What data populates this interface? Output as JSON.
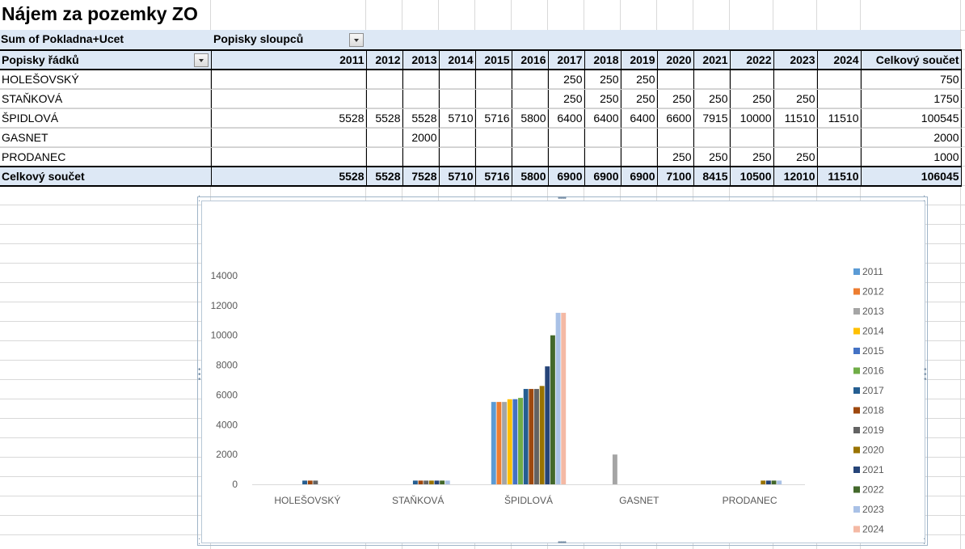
{
  "sheet": {
    "title": "Nájem za pozemky ZO",
    "value_field": "Sum of Pokladna+Ucet",
    "column_labels": "Popisky sloupců",
    "row_labels": "Popisky řádků",
    "grand_total_label": "Celkový součet"
  },
  "pivot": {
    "years": [
      "2011",
      "2012",
      "2013",
      "2014",
      "2015",
      "2016",
      "2017",
      "2018",
      "2019",
      "2020",
      "2021",
      "2022",
      "2023",
      "2024"
    ],
    "rows": [
      {
        "label": "HOLEŠOVSKÝ",
        "cells": [
          "",
          "",
          "",
          "",
          "",
          "",
          "250",
          "250",
          "250",
          "",
          "",
          "",
          "",
          ""
        ],
        "total": "750"
      },
      {
        "label": "STAŇKOVÁ",
        "cells": [
          "",
          "",
          "",
          "",
          "",
          "",
          "250",
          "250",
          "250",
          "250",
          "250",
          "250",
          "250",
          ""
        ],
        "total": "1750"
      },
      {
        "label": "ŠPIDLOVÁ",
        "cells": [
          "5528",
          "5528",
          "5528",
          "5710",
          "5716",
          "5800",
          "6400",
          "6400",
          "6400",
          "6600",
          "7915",
          "10000",
          "11510",
          "11510"
        ],
        "total": "100545"
      },
      {
        "label": "GASNET",
        "cells": [
          "",
          "",
          "2000",
          "",
          "",
          "",
          "",
          "",
          "",
          "",
          "",
          "",
          "",
          ""
        ],
        "total": "2000"
      },
      {
        "label": "PRODANEC",
        "cells": [
          "",
          "",
          "",
          "",
          "",
          "",
          "",
          "",
          "",
          "250",
          "250",
          "250",
          "250",
          ""
        ],
        "total": "1000"
      }
    ],
    "totals": [
      "5528",
      "5528",
      "7528",
      "5710",
      "5716",
      "5800",
      "6900",
      "6900",
      "6900",
      "7100",
      "8415",
      "10500",
      "12010",
      "11510"
    ],
    "grand_total": "106045"
  },
  "chart_data": {
    "type": "bar",
    "categories": [
      "HOLEŠOVSKÝ",
      "STAŇKOVÁ",
      "ŠPIDLOVÁ",
      "GASNET",
      "PRODANEC"
    ],
    "series": [
      {
        "name": "2011",
        "color": "#5b9bd5",
        "values": [
          0,
          0,
          5528,
          0,
          0
        ]
      },
      {
        "name": "2012",
        "color": "#ed7d31",
        "values": [
          0,
          0,
          5528,
          0,
          0
        ]
      },
      {
        "name": "2013",
        "color": "#a5a5a5",
        "values": [
          0,
          0,
          5528,
          2000,
          0
        ]
      },
      {
        "name": "2014",
        "color": "#ffc000",
        "values": [
          0,
          0,
          5710,
          0,
          0
        ]
      },
      {
        "name": "2015",
        "color": "#4472c4",
        "values": [
          0,
          0,
          5716,
          0,
          0
        ]
      },
      {
        "name": "2016",
        "color": "#70ad47",
        "values": [
          0,
          0,
          5800,
          0,
          0
        ]
      },
      {
        "name": "2017",
        "color": "#255e91",
        "values": [
          250,
          250,
          6400,
          0,
          0
        ]
      },
      {
        "name": "2018",
        "color": "#9e480e",
        "values": [
          250,
          250,
          6400,
          0,
          0
        ]
      },
      {
        "name": "2019",
        "color": "#636363",
        "values": [
          250,
          250,
          6400,
          0,
          0
        ]
      },
      {
        "name": "2020",
        "color": "#997300",
        "values": [
          0,
          250,
          6600,
          0,
          250
        ]
      },
      {
        "name": "2021",
        "color": "#264478",
        "values": [
          0,
          250,
          7915,
          0,
          250
        ]
      },
      {
        "name": "2022",
        "color": "#43682b",
        "values": [
          0,
          250,
          10000,
          0,
          250
        ]
      },
      {
        "name": "2023",
        "color": "#a9c1e6",
        "values": [
          0,
          250,
          11510,
          0,
          250
        ]
      },
      {
        "name": "2024",
        "color": "#f4b9a4",
        "values": [
          0,
          0,
          11510,
          0,
          0
        ]
      }
    ],
    "y_ticks": [
      "0",
      "2000",
      "4000",
      "6000",
      "8000",
      "10000",
      "12000",
      "14000"
    ],
    "ylim": [
      0,
      14000
    ],
    "legend_position": "right",
    "grid": false
  }
}
